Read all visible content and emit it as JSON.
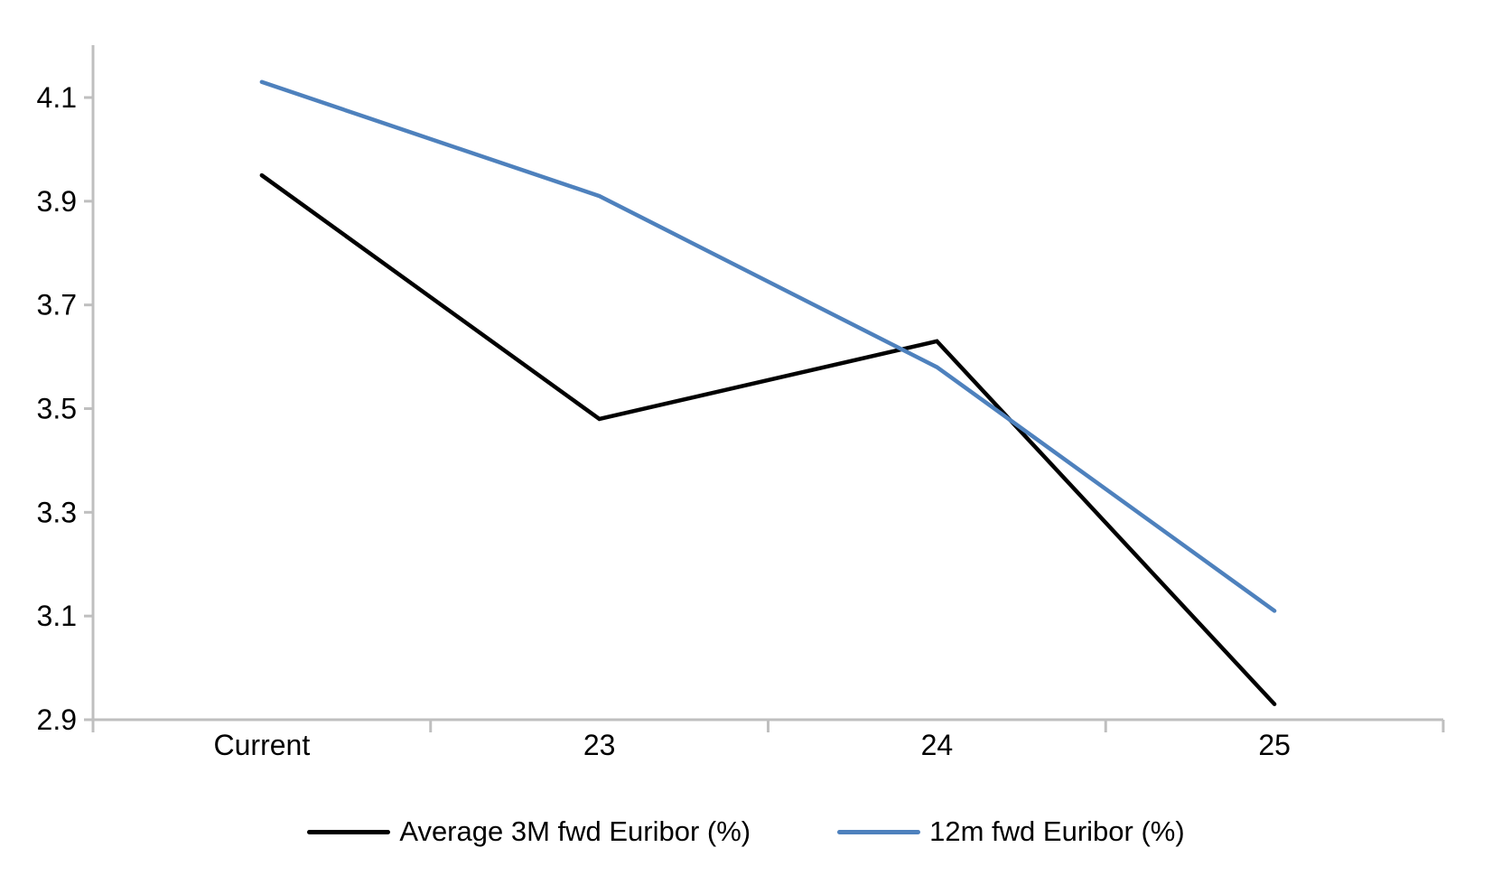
{
  "chart_data": {
    "type": "line",
    "title": "",
    "xlabel": "",
    "ylabel": "",
    "categories": [
      "Current",
      "23",
      "24",
      "25"
    ],
    "series": [
      {
        "name": "Average 3M fwd Euribor (%)",
        "color": "#000000",
        "values": [
          3.95,
          3.48,
          3.63,
          2.93
        ]
      },
      {
        "name": "12m fwd Euribor (%)",
        "color": "#4E81BD",
        "values": [
          4.13,
          3.91,
          3.58,
          3.11
        ]
      }
    ],
    "ylim": [
      2.9,
      4.2
    ],
    "yticks": [
      2.9,
      3.1,
      3.3,
      3.5,
      3.7,
      3.9,
      4.1
    ],
    "grid": false,
    "legend_position": "bottom",
    "axis_color": "#BFBFBF",
    "text_color": "#000000",
    "background_color": "#FFFFFF"
  }
}
